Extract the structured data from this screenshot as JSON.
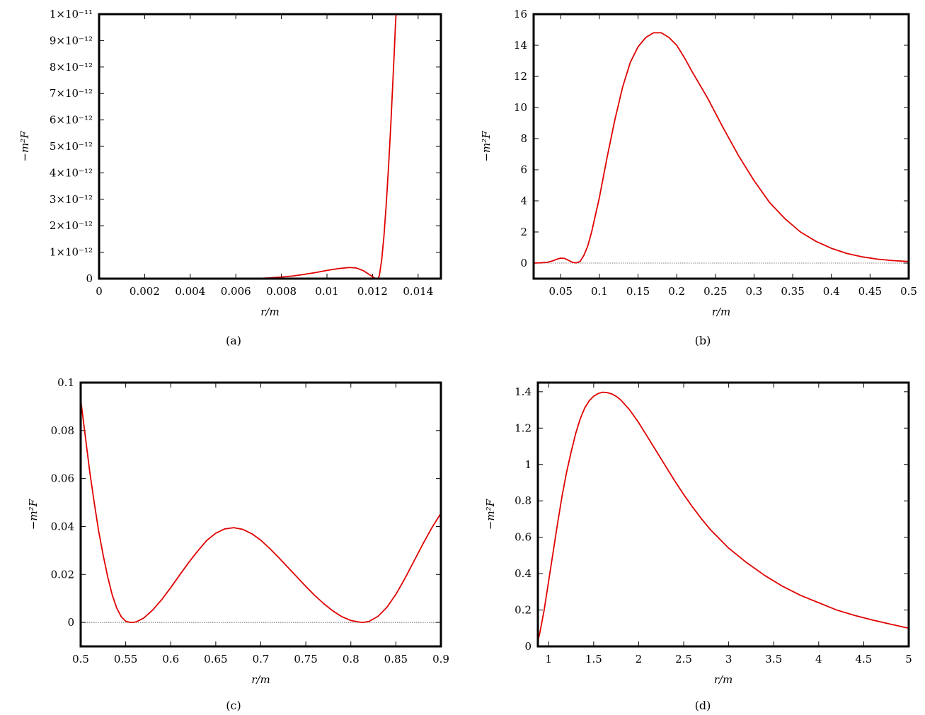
{
  "colors": {
    "curve": "#e00000",
    "frame": "#000000",
    "zero_line": "#000000"
  },
  "chart_data": [
    {
      "type": "line",
      "caption": "(a)",
      "xlabel": "r/m",
      "ylabel": "−m²F",
      "xlim": [
        0,
        0.015
      ],
      "ylim": [
        0,
        1e-11
      ],
      "xticks": [
        0,
        0.002,
        0.004,
        0.006,
        0.008,
        0.01,
        0.012,
        0.014
      ],
      "xtick_labels": [
        "0",
        "0.002",
        "0.004",
        "0.006",
        "0.008",
        "0.01",
        "0.012",
        "0.014"
      ],
      "yticks": [
        0,
        1e-12,
        2e-12,
        3e-12,
        4e-12,
        5e-12,
        6e-12,
        7e-12,
        8e-12,
        9e-12,
        1e-11
      ],
      "ytick_labels": [
        "0",
        "1×10⁻¹²",
        "2×10⁻¹²",
        "3×10⁻¹²",
        "4×10⁻¹²",
        "5×10⁻¹²",
        "6×10⁻¹²",
        "7×10⁻¹²",
        "8×10⁻¹²",
        "9×10⁻¹²",
        "1×10⁻¹¹"
      ],
      "zero_line": false,
      "series": [
        {
          "x": [
            0,
            0.002,
            0.004,
            0.006,
            0.007,
            0.0075,
            0.008,
            0.0085,
            0.009,
            0.0095,
            0.01,
            0.0105,
            0.011,
            0.0113,
            0.0116,
            0.0119,
            0.0121,
            0.0122,
            0.01225,
            0.0123,
            0.0124,
            0.0125,
            0.0126,
            0.0127,
            0.0128,
            0.0129,
            0.01295,
            0.013,
            0.01305
          ],
          "y": [
            0,
            0,
            0,
            0,
            1e-14,
            3e-14,
            6e-14,
            1e-13,
            1.6e-13,
            2.3e-13,
            3.1e-13,
            3.8e-13,
            4.2e-13,
            4e-13,
            3e-13,
            1.3e-13,
            2e-14,
            0,
            2e-14,
            1.2e-13,
            7e-13,
            1.6e-12,
            2.8e-12,
            4.2e-12,
            5.8e-12,
            7.6e-12,
            8.5e-12,
            9.5e-12,
            1.03e-11
          ]
        }
      ]
    },
    {
      "type": "line",
      "caption": "(b)",
      "xlabel": "r/m",
      "ylabel": "−m²F",
      "xlim": [
        0.015,
        0.5
      ],
      "ylim": [
        -1,
        16
      ],
      "xticks": [
        0.05,
        0.1,
        0.15,
        0.2,
        0.25,
        0.3,
        0.35,
        0.4,
        0.45,
        0.5
      ],
      "xtick_labels": [
        "0.05",
        "0.1",
        "0.15",
        "0.2",
        "0.25",
        "0.3",
        "0.35",
        "0.4",
        "0.45",
        "0.5"
      ],
      "yticks": [
        0,
        2,
        4,
        6,
        8,
        10,
        12,
        14,
        16
      ],
      "ytick_labels": [
        "0",
        "2",
        "4",
        "6",
        "8",
        "10",
        "12",
        "14",
        "16"
      ],
      "zero_line": true,
      "series": [
        {
          "x": [
            0.015,
            0.025,
            0.033,
            0.04,
            0.045,
            0.05,
            0.055,
            0.06,
            0.065,
            0.07,
            0.075,
            0.08,
            0.085,
            0.09,
            0.1,
            0.11,
            0.12,
            0.13,
            0.14,
            0.15,
            0.16,
            0.17,
            0.18,
            0.19,
            0.2,
            0.21,
            0.22,
            0.24,
            0.26,
            0.28,
            0.3,
            0.32,
            0.34,
            0.36,
            0.38,
            0.4,
            0.42,
            0.44,
            0.46,
            0.48,
            0.5
          ],
          "y": [
            0,
            0.02,
            0.05,
            0.15,
            0.25,
            0.32,
            0.3,
            0.18,
            0.05,
            0.01,
            0.1,
            0.5,
            1.1,
            2.0,
            4.2,
            6.8,
            9.2,
            11.3,
            12.9,
            13.9,
            14.5,
            14.8,
            14.8,
            14.5,
            14.0,
            13.2,
            12.3,
            10.6,
            8.7,
            6.9,
            5.3,
            3.9,
            2.85,
            2.0,
            1.4,
            0.95,
            0.62,
            0.4,
            0.25,
            0.16,
            0.1
          ]
        }
      ]
    },
    {
      "type": "line",
      "caption": "(c)",
      "xlabel": "r/m",
      "ylabel": "−m²F",
      "xlim": [
        0.5,
        0.9
      ],
      "ylim": [
        -0.01,
        0.1
      ],
      "xticks": [
        0.5,
        0.55,
        0.6,
        0.65,
        0.7,
        0.75,
        0.8,
        0.85,
        0.9
      ],
      "xtick_labels": [
        "0.5",
        "0.55",
        "0.6",
        "0.65",
        "0.7",
        "0.75",
        "0.8",
        "0.85",
        "0.9"
      ],
      "yticks": [
        0,
        0.02,
        0.04,
        0.06,
        0.08,
        0.1
      ],
      "ytick_labels": [
        "0",
        "0.02",
        "0.04",
        "0.06",
        "0.08",
        "0.1"
      ],
      "zero_line": true,
      "series": [
        {
          "x": [
            0.5,
            0.505,
            0.51,
            0.515,
            0.52,
            0.525,
            0.53,
            0.535,
            0.54,
            0.545,
            0.55,
            0.555,
            0.558,
            0.562,
            0.57,
            0.58,
            0.59,
            0.6,
            0.61,
            0.62,
            0.63,
            0.64,
            0.65,
            0.66,
            0.67,
            0.68,
            0.69,
            0.7,
            0.71,
            0.72,
            0.73,
            0.74,
            0.75,
            0.76,
            0.77,
            0.78,
            0.79,
            0.8,
            0.81,
            0.813,
            0.82,
            0.83,
            0.84,
            0.85,
            0.86,
            0.87,
            0.88,
            0.89,
            0.9
          ],
          "y": [
            0.093,
            0.078,
            0.063,
            0.05,
            0.038,
            0.028,
            0.019,
            0.0115,
            0.006,
            0.0024,
            0.0005,
            0.0,
            0.0,
            0.0003,
            0.0018,
            0.0052,
            0.0095,
            0.0145,
            0.0198,
            0.025,
            0.0298,
            0.0342,
            0.0372,
            0.039,
            0.0395,
            0.0388,
            0.037,
            0.0343,
            0.0308,
            0.027,
            0.023,
            0.019,
            0.015,
            0.0112,
            0.0078,
            0.0048,
            0.0024,
            0.0008,
            0.0001,
            0.0,
            0.0004,
            0.0025,
            0.0063,
            0.0117,
            0.0183,
            0.0255,
            0.0327,
            0.0395,
            0.0455
          ]
        }
      ]
    },
    {
      "type": "line",
      "caption": "(d)",
      "xlabel": "r/m",
      "ylabel": "−m²F",
      "xlim": [
        0.88,
        5
      ],
      "ylim": [
        0,
        1.45
      ],
      "xticks": [
        1,
        1.5,
        2,
        2.5,
        3,
        3.5,
        4,
        4.5,
        5
      ],
      "xtick_labels": [
        "1",
        "1.5",
        "2",
        "2.5",
        "3",
        "3.5",
        "4",
        "4.5",
        "5"
      ],
      "yticks": [
        0,
        0.2,
        0.4,
        0.6,
        0.8,
        1,
        1.2,
        1.4
      ],
      "ytick_labels": [
        "0",
        "0.2",
        "0.4",
        "0.6",
        "0.8",
        "1",
        "1.2",
        "1.4"
      ],
      "zero_line": false,
      "series": [
        {
          "x": [
            0.88,
            0.9,
            0.95,
            1.0,
            1.05,
            1.1,
            1.15,
            1.2,
            1.25,
            1.3,
            1.35,
            1.4,
            1.45,
            1.5,
            1.55,
            1.6,
            1.65,
            1.7,
            1.75,
            1.8,
            1.9,
            2.0,
            2.1,
            2.2,
            2.3,
            2.4,
            2.5,
            2.6,
            2.7,
            2.8,
            3.0,
            3.2,
            3.4,
            3.6,
            3.8,
            4.0,
            4.2,
            4.4,
            4.6,
            4.8,
            5.0
          ],
          "y": [
            0.03,
            0.07,
            0.2,
            0.36,
            0.52,
            0.68,
            0.83,
            0.96,
            1.07,
            1.17,
            1.25,
            1.31,
            1.35,
            1.375,
            1.39,
            1.397,
            1.395,
            1.388,
            1.375,
            1.355,
            1.3,
            1.23,
            1.15,
            1.07,
            0.99,
            0.91,
            0.835,
            0.765,
            0.7,
            0.64,
            0.54,
            0.46,
            0.39,
            0.33,
            0.28,
            0.24,
            0.2,
            0.17,
            0.145,
            0.122,
            0.1
          ]
        }
      ]
    }
  ]
}
